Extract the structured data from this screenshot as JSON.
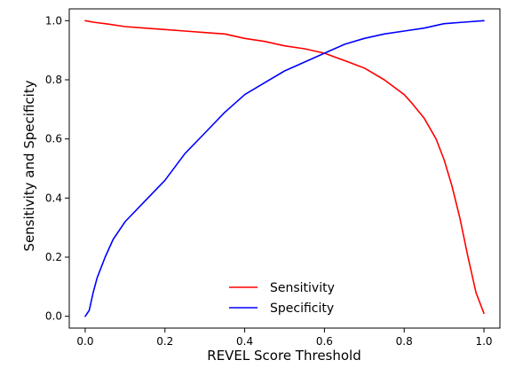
{
  "chart_data": {
    "type": "line",
    "title": "",
    "xlabel": "REVEL Score Threshold",
    "ylabel": "Sensitivity and Specificity",
    "xlim": [
      -0.04,
      1.04
    ],
    "ylim": [
      -0.04,
      1.04
    ],
    "xticks": [
      0.0,
      0.2,
      0.4,
      0.6,
      0.8,
      1.0
    ],
    "xtick_labels": [
      "0.0",
      "0.2",
      "0.4",
      "0.6",
      "0.8",
      "1.0"
    ],
    "yticks": [
      0.0,
      0.2,
      0.4,
      0.6,
      0.8,
      1.0
    ],
    "ytick_labels": [
      "0.0",
      "0.2",
      "0.4",
      "0.6",
      "0.8",
      "1.0"
    ],
    "grid": false,
    "legend_position": "lower center",
    "series": [
      {
        "name": "Sensitivity",
        "color": "#ff0000",
        "x": [
          0.0,
          0.02,
          0.05,
          0.1,
          0.15,
          0.2,
          0.25,
          0.3,
          0.35,
          0.4,
          0.45,
          0.5,
          0.55,
          0.6,
          0.65,
          0.7,
          0.75,
          0.8,
          0.82,
          0.85,
          0.88,
          0.9,
          0.92,
          0.94,
          0.96,
          0.98,
          1.0
        ],
        "y": [
          1.0,
          0.995,
          0.99,
          0.98,
          0.975,
          0.97,
          0.965,
          0.96,
          0.955,
          0.94,
          0.93,
          0.915,
          0.905,
          0.89,
          0.865,
          0.84,
          0.8,
          0.75,
          0.72,
          0.67,
          0.6,
          0.53,
          0.44,
          0.33,
          0.2,
          0.08,
          0.01
        ]
      },
      {
        "name": "Specificity",
        "color": "#0000ff",
        "x": [
          0.0,
          0.01,
          0.02,
          0.03,
          0.05,
          0.07,
          0.1,
          0.15,
          0.2,
          0.25,
          0.3,
          0.35,
          0.4,
          0.45,
          0.5,
          0.55,
          0.6,
          0.65,
          0.7,
          0.75,
          0.8,
          0.85,
          0.9,
          0.95,
          1.0
        ],
        "y": [
          0.0,
          0.02,
          0.08,
          0.13,
          0.2,
          0.26,
          0.32,
          0.39,
          0.46,
          0.55,
          0.62,
          0.69,
          0.75,
          0.79,
          0.83,
          0.86,
          0.89,
          0.92,
          0.94,
          0.955,
          0.965,
          0.975,
          0.99,
          0.995,
          1.0
        ]
      }
    ]
  }
}
